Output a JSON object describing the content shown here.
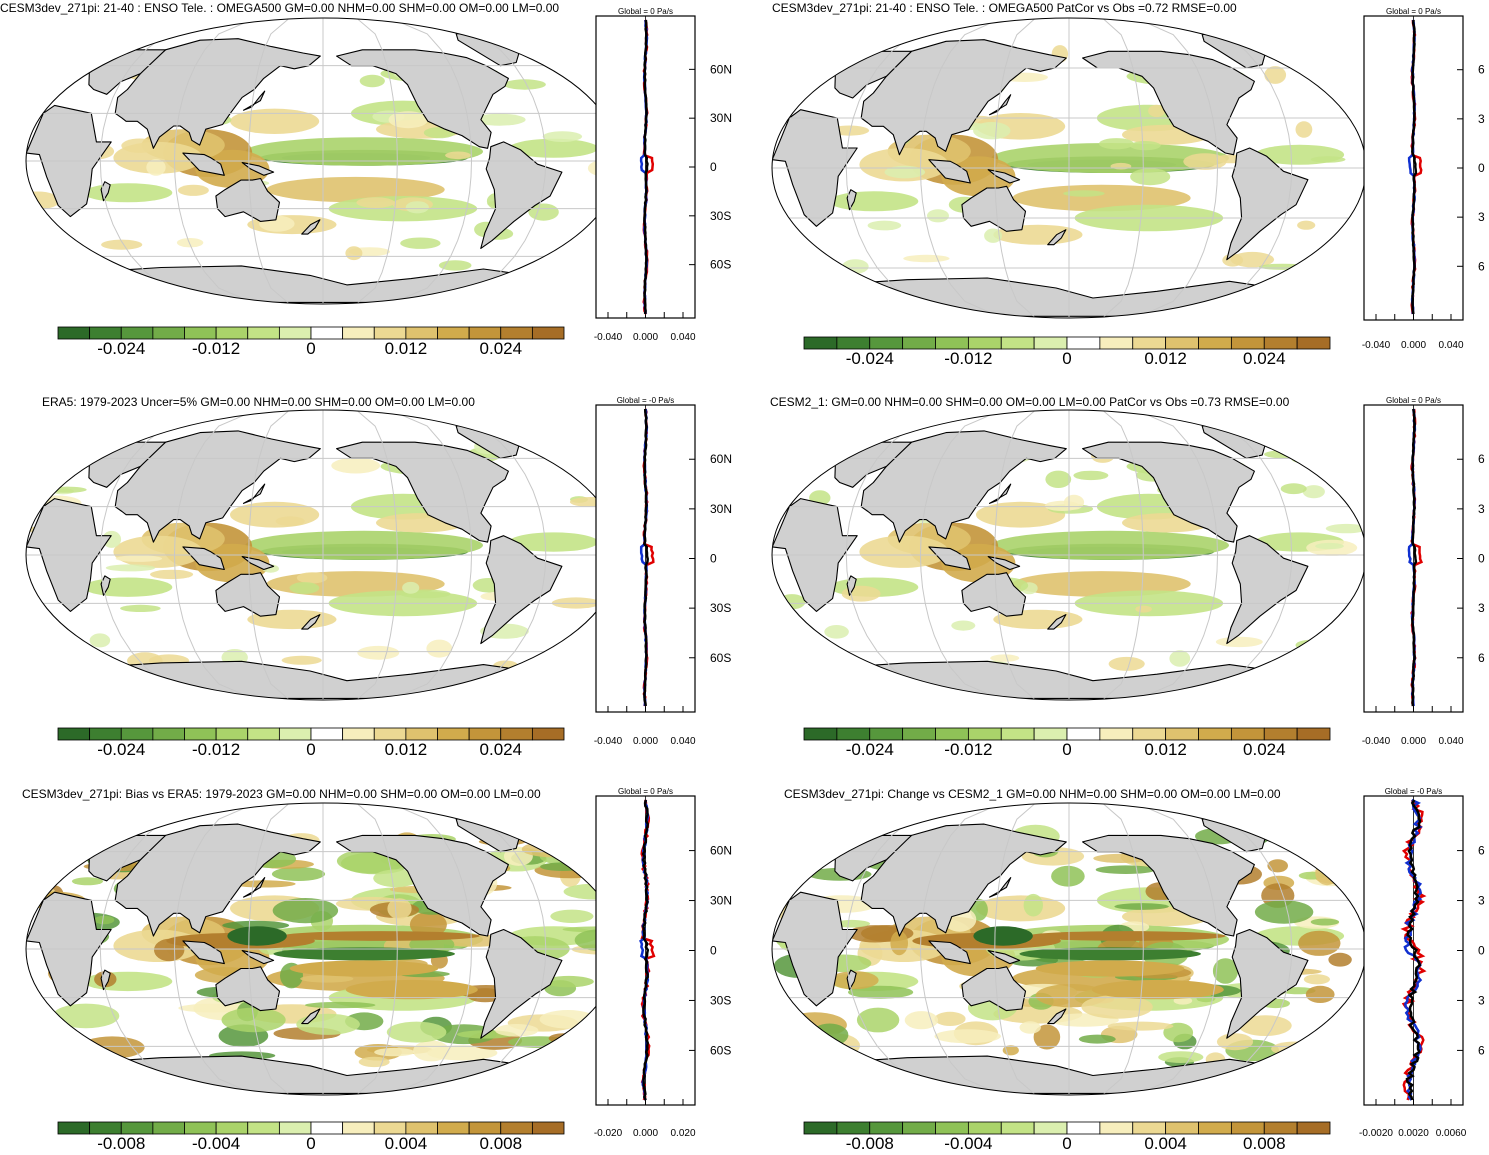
{
  "panels": [
    {
      "title": "CESM3dev_271pi: 21-40 : ENSO Tele. : OMEGA500 GM=0.00 NHM=0.00 SHM=0.00 OM=0.00 LM=0.00",
      "side_title": "Global = 0 Pa/s",
      "colorbar_labels": [
        "-0.024",
        "-0.012",
        "0",
        "0.012",
        "0.024"
      ],
      "side_xticks": [
        "-0.040",
        "0.000",
        "0.040"
      ],
      "lat_labels": [
        "60N",
        "30N",
        "0",
        "30S",
        "60S"
      ],
      "style": "tele"
    },
    {
      "title": "CESM3dev_271pi: 21-40 : ENSO Tele. : OMEGA500 PatCor vs Obs =0.72 RMSE=0.00",
      "side_title": "Global = 0 Pa/s",
      "colorbar_labels": [
        "-0.024",
        "-0.012",
        "0",
        "0.012",
        "0.024"
      ],
      "side_xticks": [
        "-0.040",
        "0.000",
        "0.040"
      ],
      "lat_labels": [
        "6",
        "3",
        "0",
        "3",
        "6"
      ],
      "style": "tele"
    },
    {
      "title": "ERA5: 1979-2023 Uncer=5% GM=0.00 NHM=0.00 SHM=0.00 OM=0.00 LM=0.00",
      "side_title": "Global = -0 Pa/s",
      "colorbar_labels": [
        "-0.024",
        "-0.012",
        "0",
        "0.012",
        "0.024"
      ],
      "side_xticks": [
        "-0.040",
        "0.000",
        "0.040"
      ],
      "lat_labels": [
        "60N",
        "30N",
        "0",
        "30S",
        "60S"
      ],
      "style": "tele"
    },
    {
      "title": "CESM2_1: GM=0.00 NHM=0.00 SHM=0.00 OM=0.00 LM=0.00 PatCor vs Obs =0.73 RMSE=0.00",
      "side_title": "Global = 0 Pa/s",
      "colorbar_labels": [
        "-0.024",
        "-0.012",
        "0",
        "0.012",
        "0.024"
      ],
      "side_xticks": [
        "-0.040",
        "0.000",
        "0.040"
      ],
      "lat_labels": [
        "6",
        "3",
        "0",
        "3",
        "6"
      ],
      "style": "tele"
    },
    {
      "title": "CESM3dev_271pi: Bias vs ERA5: 1979-2023 GM=0.00 NHM=0.00 SHM=0.00 OM=0.00 LM=0.00",
      "side_title": "Global = 0 Pa/s",
      "colorbar_labels": [
        "-0.008",
        "-0.004",
        "0",
        "0.004",
        "0.008"
      ],
      "side_xticks": [
        "-0.020",
        "0.000",
        "0.020"
      ],
      "lat_labels": [
        "60N",
        "30N",
        "0",
        "30S",
        "60S"
      ],
      "style": "diff"
    },
    {
      "title": "CESM3dev_271pi: Change vs CESM2_1 GM=0.00 NHM=0.00 SHM=0.00 OM=0.00 LM=0.00",
      "side_title": "Global = -0 Pa/s",
      "colorbar_labels": [
        "-0.008",
        "-0.004",
        "0",
        "0.004",
        "0.008"
      ],
      "side_xticks": [
        "-0.0020",
        "0.0020",
        "0.0060"
      ],
      "lat_labels": [
        "6",
        "3",
        "0",
        "3",
        "6"
      ],
      "style": "diff"
    }
  ],
  "colors": {
    "land": "#d0d0d0",
    "coast": "#000000",
    "grid": "#c8c8c8",
    "line_obs": "#e00000",
    "line_model": "#1030d0",
    "line_main": "#000000",
    "palette": [
      "#2c6a28",
      "#3d7f30",
      "#56973c",
      "#72ac48",
      "#8fc257",
      "#aad36a",
      "#c3e386",
      "#dbefaf",
      "#ffffff",
      "#f7eebd",
      "#ecd993",
      "#dfc26e",
      "#d1ab4c",
      "#c3953a",
      "#b37f2e",
      "#a66d26"
    ]
  }
}
